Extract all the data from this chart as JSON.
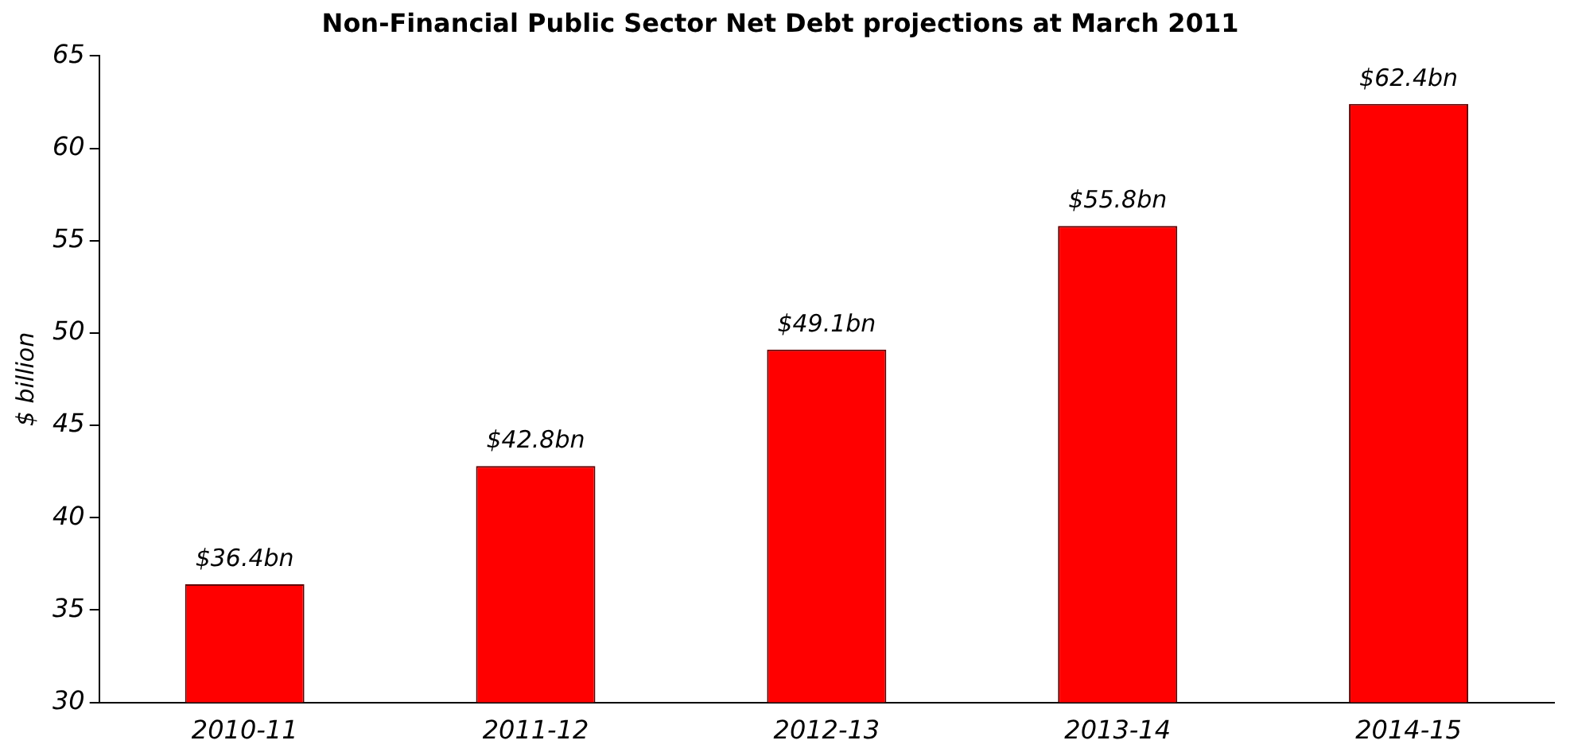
{
  "chart_data": {
    "type": "bar",
    "title": "Non-Financial Public Sector Net Debt projections at March 2011",
    "ylabel": "$ billion",
    "categories": [
      "2010-11",
      "2011-12",
      "2012-13",
      "2013-14",
      "2014-15"
    ],
    "values": [
      36.4,
      42.8,
      49.1,
      55.8,
      62.4
    ],
    "value_labels": [
      "$36.4bn",
      "$42.8bn",
      "$49.1bn",
      "$55.8bn",
      "$62.4bn"
    ],
    "color": "#ff0000",
    "ylim": [
      30,
      65
    ],
    "yticks": [
      30,
      35,
      40,
      45,
      50,
      55,
      60,
      65
    ],
    "grid": false,
    "legend": false
  }
}
